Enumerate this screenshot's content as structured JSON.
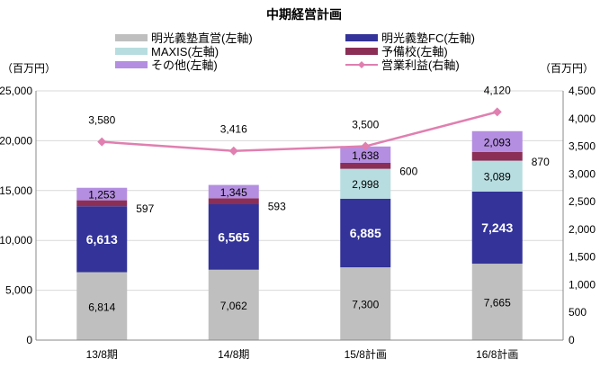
{
  "chart_data": {
    "type": "bar",
    "title": "中期経営計画",
    "ylabel_left": "（百万円）",
    "ylabel_right": "（百万円）",
    "categories": [
      "13/8期",
      "14/8期",
      "15/8計画",
      "16/8計画"
    ],
    "ylim_left": [
      0,
      25000
    ],
    "ylim_right": [
      0,
      4500
    ],
    "yticks_left": [
      "0",
      "5,000",
      "10,000",
      "15,000",
      "20,000",
      "25,000"
    ],
    "yticks_right": [
      "0",
      "500",
      "1,000",
      "1,500",
      "2,000",
      "2,500",
      "3,000",
      "3,500",
      "4,000",
      "4,500"
    ],
    "grid": true,
    "legend_position": "top",
    "series": [
      {
        "name": "明光義塾直営(左軸)",
        "color": "#bfbfbf",
        "values": [
          6814,
          7062,
          7300,
          7665
        ],
        "labels": [
          "6,814",
          "7,062",
          "7,300",
          "7,665"
        ],
        "label_color": "#000000"
      },
      {
        "name": "明光義塾FC(左軸)",
        "color": "#333399",
        "values": [
          6613,
          6565,
          6885,
          7243
        ],
        "labels": [
          "6,613",
          "6,565",
          "6,885",
          "7,243"
        ],
        "label_color": "#ffffff"
      },
      {
        "name": "MAXIS(左軸)",
        "color": "#b7dde0",
        "values": [
          0,
          0,
          2998,
          3089
        ],
        "labels": [
          "",
          "",
          "2,998",
          "3,089"
        ],
        "label_color": "#000000"
      },
      {
        "name": "予備校(左軸)",
        "color": "#8b2f57",
        "values": [
          597,
          593,
          600,
          870
        ],
        "labels": [
          "597",
          "593",
          "600",
          "870"
        ],
        "label_color": "#000000",
        "label_outside": true
      },
      {
        "name": "その他(左軸)",
        "color": "#b48ee0",
        "values": [
          1253,
          1345,
          1638,
          2093
        ],
        "labels": [
          "1,253",
          "1,345",
          "1,638",
          "2,093"
        ],
        "label_color": "#000000"
      }
    ],
    "line": {
      "name": "営業利益(右軸)",
      "color": "#e07fb0",
      "values": [
        3580,
        3416,
        3500,
        4120
      ],
      "labels": [
        "3,580",
        "3,416",
        "3,500",
        "4,120"
      ]
    }
  }
}
